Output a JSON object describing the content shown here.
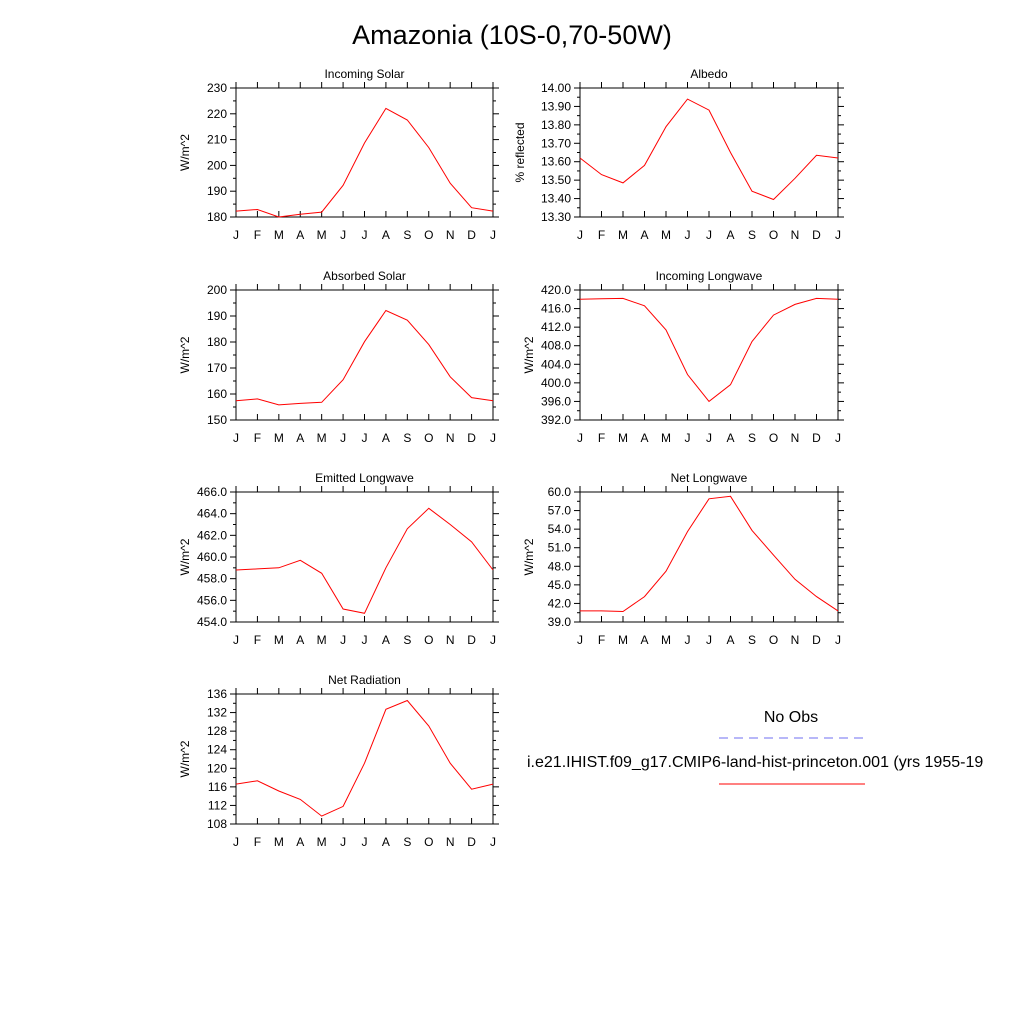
{
  "figure": {
    "title": "Amazonia (10S-0,70-50W)",
    "legend": {
      "obs_label": "No Obs",
      "model_label": "i.e21.IHIST.f09_g17.CMIP6-land-hist-princeton.001 (yrs 1955-19",
      "obs_color": "#6f6ff0",
      "model_color": "#ff0000"
    }
  },
  "chart_data": [
    {
      "type": "line",
      "title": "Incoming Solar",
      "ylabel": "W/m^2",
      "categories": [
        "J",
        "F",
        "M",
        "A",
        "M",
        "J",
        "J",
        "A",
        "S",
        "O",
        "N",
        "D",
        "J"
      ],
      "ylim": [
        180,
        230
      ],
      "yticks": [
        "180",
        "190",
        "200",
        "210",
        "220",
        "230"
      ],
      "series": [
        {
          "values": [
            182.3,
            182.9,
            180.0,
            181.1,
            181.9,
            192.3,
            208.7,
            222.1,
            217.6,
            206.9,
            193.1,
            183.6,
            182.3
          ],
          "color": "#ff0000"
        }
      ]
    },
    {
      "type": "line",
      "title": "Albedo",
      "ylabel": "% reflected",
      "categories": [
        "J",
        "F",
        "M",
        "A",
        "M",
        "J",
        "J",
        "A",
        "S",
        "O",
        "N",
        "D",
        "J"
      ],
      "ylim": [
        13.3,
        14.0
      ],
      "yticks": [
        "13.30",
        "13.40",
        "13.50",
        "13.60",
        "13.70",
        "13.80",
        "13.90",
        "14.00"
      ],
      "series": [
        {
          "values": [
            13.62,
            13.53,
            13.485,
            13.58,
            13.79,
            13.94,
            13.88,
            13.65,
            13.44,
            13.395,
            13.51,
            13.635,
            13.62
          ],
          "color": "#ff0000"
        }
      ]
    },
    {
      "type": "line",
      "title": "Absorbed Solar",
      "ylabel": "W/m^2",
      "categories": [
        "J",
        "F",
        "M",
        "A",
        "M",
        "J",
        "J",
        "A",
        "S",
        "O",
        "N",
        "D",
        "J"
      ],
      "ylim": [
        150,
        200
      ],
      "yticks": [
        "150",
        "160",
        "170",
        "180",
        "190",
        "200"
      ],
      "series": [
        {
          "values": [
            157.4,
            158.1,
            155.8,
            156.4,
            156.8,
            165.5,
            180.1,
            192.1,
            188.4,
            179.0,
            166.6,
            158.6,
            157.4
          ],
          "color": "#ff0000"
        }
      ]
    },
    {
      "type": "line",
      "title": "Incoming Longwave",
      "ylabel": "W/m^2",
      "categories": [
        "J",
        "F",
        "M",
        "A",
        "M",
        "J",
        "J",
        "A",
        "S",
        "O",
        "N",
        "D",
        "J"
      ],
      "ylim": [
        392.0,
        420.0
      ],
      "yticks": [
        "392.0",
        "396.0",
        "400.0",
        "404.0",
        "408.0",
        "412.0",
        "416.0",
        "420.0"
      ],
      "series": [
        {
          "values": [
            418.0,
            418.1,
            418.2,
            416.6,
            411.4,
            401.8,
            396.0,
            399.6,
            408.9,
            414.6,
            416.9,
            418.2,
            418.0
          ],
          "color": "#ff0000"
        }
      ]
    },
    {
      "type": "line",
      "title": "Emitted Longwave",
      "ylabel": "W/m^2",
      "categories": [
        "J",
        "F",
        "M",
        "A",
        "M",
        "J",
        "J",
        "A",
        "S",
        "O",
        "N",
        "D",
        "J"
      ],
      "ylim": [
        454.0,
        466.0
      ],
      "yticks": [
        "454.0",
        "456.0",
        "458.0",
        "460.0",
        "462.0",
        "464.0",
        "466.0"
      ],
      "series": [
        {
          "values": [
            458.8,
            458.9,
            459.0,
            459.7,
            458.5,
            455.2,
            454.8,
            459.0,
            462.6,
            464.5,
            463.0,
            461.4,
            458.8
          ],
          "color": "#ff0000"
        }
      ]
    },
    {
      "type": "line",
      "title": "Net Longwave",
      "ylabel": "W/m^2",
      "categories": [
        "J",
        "F",
        "M",
        "A",
        "M",
        "J",
        "J",
        "A",
        "S",
        "O",
        "N",
        "D",
        "J"
      ],
      "ylim": [
        39.0,
        60.0
      ],
      "yticks": [
        "39.0",
        "42.0",
        "45.0",
        "48.0",
        "51.0",
        "54.0",
        "57.0",
        "60.0"
      ],
      "series": [
        {
          "values": [
            40.8,
            40.8,
            40.7,
            43.1,
            47.2,
            53.6,
            58.9,
            59.3,
            53.8,
            49.8,
            45.9,
            43.1,
            40.8
          ],
          "color": "#ff0000"
        }
      ]
    },
    {
      "type": "line",
      "title": "Net Radiation",
      "ylabel": "W/m^2",
      "categories": [
        "J",
        "F",
        "M",
        "A",
        "M",
        "J",
        "J",
        "A",
        "S",
        "O",
        "N",
        "D",
        "J"
      ],
      "ylim": [
        108,
        136
      ],
      "yticks": [
        "108",
        "112",
        "116",
        "120",
        "124",
        "128",
        "132",
        "136"
      ],
      "series": [
        {
          "values": [
            116.6,
            117.3,
            115.1,
            113.3,
            109.7,
            111.8,
            121.1,
            132.7,
            134.6,
            129.1,
            121.1,
            115.5,
            116.6
          ],
          "color": "#ff0000"
        }
      ]
    }
  ]
}
